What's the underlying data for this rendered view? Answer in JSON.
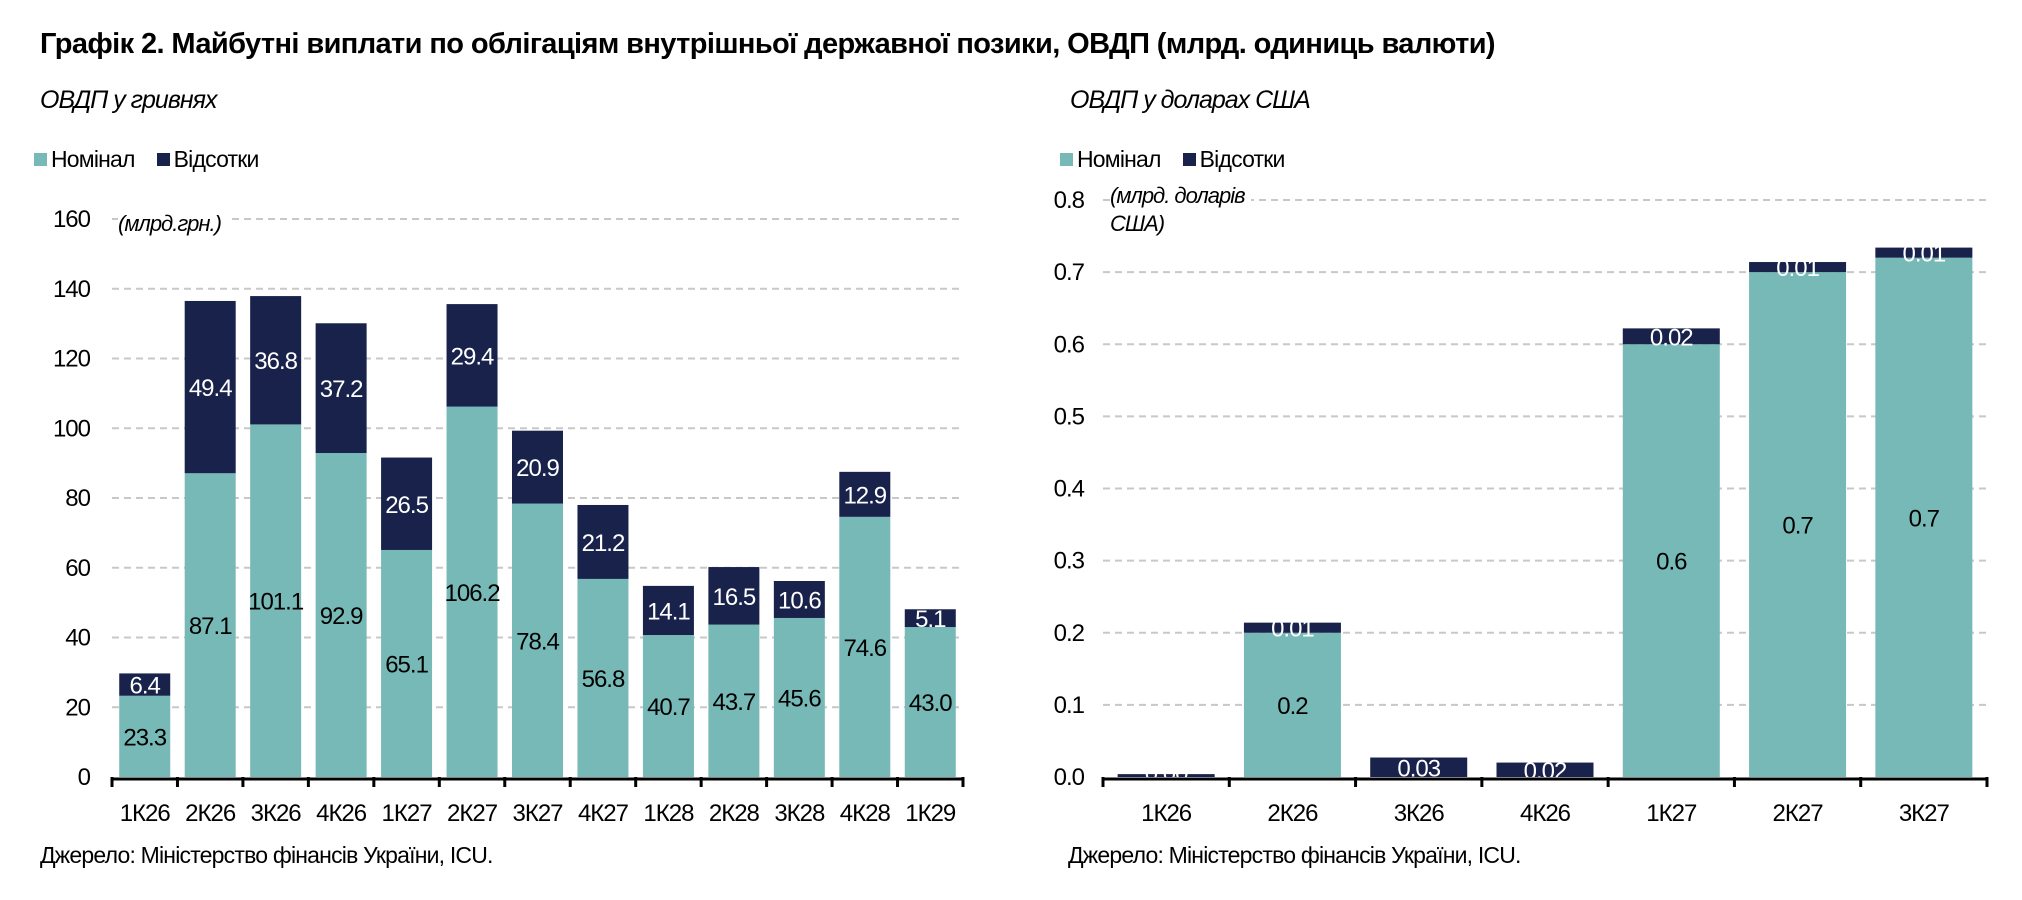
{
  "title": "Графік 2. Майбутні виплати по облігаціям внутрішньої державної позики, ОВДП (млрд. одиниць валюти)",
  "colors": {
    "nominal": "#76B9B7",
    "interest": "#18224B",
    "grid": "#C8C8C8"
  },
  "chart_data": [
    {
      "type": "bar",
      "stacked": true,
      "subtitle": "ОВДП у гривнях",
      "unit_label": "(млрд.грн.)",
      "legend": [
        "Номінал",
        "Відсотки"
      ],
      "legend_placement": "top-left",
      "grid": true,
      "ylim": [
        0,
        160
      ],
      "yticks": [
        0,
        20,
        40,
        60,
        80,
        100,
        120,
        140,
        160
      ],
      "categories": [
        "1К26",
        "2К26",
        "3К26",
        "4К26",
        "1К27",
        "2К27",
        "3К27",
        "4К27",
        "1К28",
        "2К28",
        "3К28",
        "4К28",
        "1К29"
      ],
      "series": [
        {
          "name": "Номінал",
          "values": [
            23.3,
            87.1,
            101.1,
            92.9,
            65.1,
            106.2,
            78.4,
            56.8,
            40.7,
            43.7,
            45.6,
            74.6,
            43.0
          ],
          "labels": [
            "23.3",
            "87.1",
            "101.1",
            "92.9",
            "65.1",
            "106.2",
            "78.4",
            "56.8",
            "40.7",
            "43.7",
            "45.6",
            "74.6",
            "43.0"
          ]
        },
        {
          "name": "Відсотки",
          "values": [
            6.4,
            49.4,
            36.8,
            37.2,
            26.5,
            29.4,
            20.9,
            21.2,
            14.1,
            16.5,
            10.6,
            12.9,
            5.1
          ],
          "labels": [
            "6.4",
            "49.4",
            "36.8",
            "37.2",
            "26.5",
            "29.4",
            "20.9",
            "21.2",
            "14.1",
            "16.5",
            "10.6",
            "12.9",
            "5.1"
          ]
        }
      ],
      "source": "Джерело: Міністерство фінансів України, ICU."
    },
    {
      "type": "bar",
      "stacked": true,
      "subtitle": "ОВДП у доларах США",
      "unit_label": [
        "(млрд. доларів",
        "США)"
      ],
      "legend": [
        "Номінал",
        "Відсотки"
      ],
      "legend_placement": "top-left",
      "grid": true,
      "ylim": [
        0,
        0.8
      ],
      "yticks": [
        "0.0",
        "0.1",
        "0.2",
        "0.3",
        "0.4",
        "0.5",
        "0.6",
        "0.7",
        "0.8"
      ],
      "categories": [
        "1К26",
        "2К26",
        "3К26",
        "4К26",
        "1К27",
        "2К27",
        "3К27"
      ],
      "series": [
        {
          "name": "Номінал",
          "values": [
            0,
            0.2,
            0,
            0,
            0.6,
            0.7,
            0.72
          ],
          "labels": [
            "",
            "0.2",
            "",
            "",
            "0.6",
            "0.7",
            "0.7"
          ]
        },
        {
          "name": "Відсотки",
          "values": [
            0.004,
            0.014,
            0.027,
            0.02,
            0.022,
            0.014,
            0.014
          ],
          "labels": [
            "0.00",
            "0.01",
            "0.03",
            "0.02",
            "0.02",
            "0.01",
            "0.01"
          ]
        }
      ],
      "source": "Джерело: Міністерство фінансів України, ICU."
    }
  ]
}
